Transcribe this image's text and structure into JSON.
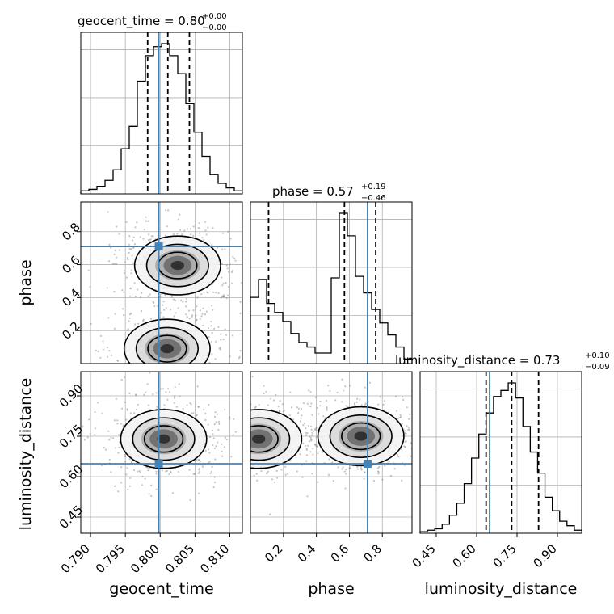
{
  "chart_data": {
    "type": "corner",
    "parameters": [
      "geocent_time",
      "phase",
      "luminosity_distance"
    ],
    "truths": {
      "geocent_time": 0.7998,
      "phase": 0.71,
      "luminosity_distance": 0.648
    },
    "axis_ranges": {
      "geocent_time": [
        0.7886,
        0.8118
      ],
      "phase": [
        0.0,
        0.98
      ],
      "luminosity_distance": [
        0.39,
        0.99
      ]
    },
    "ticks": {
      "geocent_time": [
        {
          "v": 0.79,
          "label": "0.790"
        },
        {
          "v": 0.795,
          "label": "0.795"
        },
        {
          "v": 0.8,
          "label": "0.800"
        },
        {
          "v": 0.805,
          "label": "0.805"
        },
        {
          "v": 0.81,
          "label": "0.810"
        }
      ],
      "phase": [
        {
          "v": 0.2,
          "label": "0.2"
        },
        {
          "v": 0.4,
          "label": "0.4"
        },
        {
          "v": 0.6,
          "label": "0.6"
        },
        {
          "v": 0.8,
          "label": "0.8"
        }
      ],
      "luminosity_distance": [
        {
          "v": 0.45,
          "label": "0.45"
        },
        {
          "v": 0.6,
          "label": "0.60"
        },
        {
          "v": 0.75,
          "label": "0.75"
        },
        {
          "v": 0.9,
          "label": "0.90"
        }
      ]
    },
    "titles": [
      {
        "param": "geocent_time",
        "text": "geocent_time = 0.80",
        "sup": "+0.00",
        "sub": "−0.00"
      },
      {
        "param": "phase",
        "text": "phase = 0.57",
        "sup": "+0.19",
        "sub": "−0.46"
      },
      {
        "param": "luminosity_distance",
        "text": "luminosity_distance = 0.73",
        "sup": "+0.10",
        "sub": "−0.09"
      }
    ],
    "quantiles": {
      "geocent_time": [
        0.7982,
        0.8011,
        0.8042
      ],
      "phase": [
        0.11,
        0.57,
        0.76
      ],
      "luminosity_distance": [
        0.635,
        0.73,
        0.83
      ]
    },
    "histograms": {
      "geocent_time": {
        "edges": [
          0.7886,
          0.8118
        ],
        "counts": [
          2,
          3,
          5,
          9,
          16,
          30,
          45,
          75,
          92,
          98,
          100,
          92,
          80,
          60,
          41,
          25,
          13,
          7,
          4,
          2
        ]
      },
      "phase": {
        "edges": [
          0.0,
          0.98
        ],
        "counts": [
          44,
          56,
          40,
          34,
          28,
          20,
          14,
          11,
          7,
          7,
          57,
          100,
          85,
          58,
          47,
          36,
          27,
          19,
          11,
          3
        ]
      },
      "luminosity_distance": {
        "edges": [
          0.39,
          0.99
        ],
        "counts": [
          1,
          2,
          3,
          6,
          12,
          20,
          33,
          50,
          66,
          80,
          91,
          95,
          100,
          90,
          71,
          54,
          40,
          24,
          15,
          8,
          5,
          2
        ]
      }
    },
    "density_2d": {
      "phase_vs_geocent_time": {
        "modes": [
          {
            "x": 0.8025,
            "y": 0.595,
            "weight": 1.0
          },
          {
            "x": 0.801,
            "y": 0.09,
            "weight": 0.7
          }
        ]
      },
      "luminosity_distance_vs_geocent_time": {
        "modes": [
          {
            "x": 0.8005,
            "y": 0.74,
            "weight": 1.0
          }
        ]
      },
      "luminosity_distance_vs_phase": {
        "modes": [
          {
            "x": 0.67,
            "y": 0.75,
            "weight": 1.0
          },
          {
            "x": 0.05,
            "y": 0.74,
            "weight": 0.7
          }
        ]
      }
    },
    "axis_labels": {
      "geocent_time": "geocent_time",
      "phase": "phase",
      "luminosity_distance": "luminosity_distance"
    },
    "truth_color": "#4682b4",
    "grid": true
  }
}
